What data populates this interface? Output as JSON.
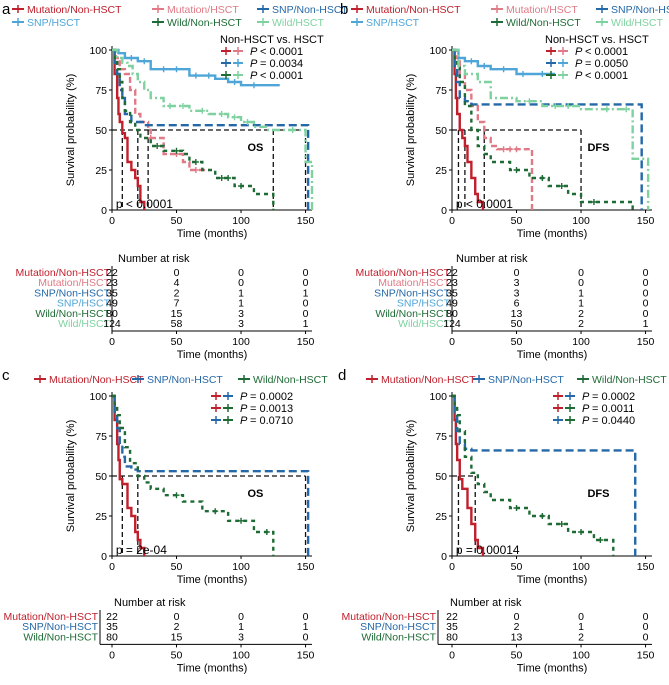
{
  "colors": {
    "mutation_non_hsct": "#c0202c",
    "mutation_hsct": "#e07a86",
    "snp_non_hsct": "#2468a8",
    "snp_hsct": "#4ea6d8",
    "wild_non_hsct": "#1e6b35",
    "wild_hsct": "#7fd2a0",
    "reference": "#111111"
  },
  "shared": {
    "ylabel": "Survival probability (%)",
    "xlabel": "Time (months)",
    "risk_header": "Number at risk",
    "y_ticks": [
      "100",
      "75",
      "50",
      "25",
      "0"
    ],
    "x_ticks": [
      "0",
      "50",
      "100",
      "150"
    ]
  },
  "chart_data": [
    {
      "panel": "a",
      "type": "line",
      "title": "OS",
      "legend": [
        "Mutation/Non-HSCT",
        "Mutation/HSCT",
        "SNP/Non-HSCT",
        "SNP/HSCT",
        "Wild/Non-HSCT",
        "Wild/HSCT"
      ],
      "p_title": "Non-HSCT vs. HSCT",
      "p_values": [
        {
          "keys": [
            "Mutation/Non-HSCT",
            "Mutation/HSCT"
          ],
          "text": "< 0.0001"
        },
        {
          "keys": [
            "SNP/Non-HSCT",
            "SNP/HSCT"
          ],
          "text": "= 0.0034"
        },
        {
          "keys": [
            "Wild/Non-HSCT",
            "Wild/HSCT"
          ],
          "text": "< 0.0001"
        }
      ],
      "logrank": "p < 0.0001",
      "xlim": [
        0,
        155
      ],
      "ylim": [
        0,
        100
      ],
      "median_lines": [
        8,
        20,
        28,
        125,
        150
      ],
      "series": [
        {
          "name": "Mutation/Non-HSCT",
          "x": [
            0,
            2,
            4,
            5,
            6,
            8,
            10,
            12,
            15,
            18,
            20,
            22,
            25
          ],
          "y": [
            100,
            85,
            70,
            60,
            55,
            48,
            45,
            30,
            25,
            20,
            15,
            5,
            0
          ]
        },
        {
          "name": "Mutation/HSCT",
          "x": [
            0,
            3,
            6,
            10,
            14,
            18,
            22,
            28,
            30,
            40,
            55,
            60,
            75
          ],
          "y": [
            100,
            95,
            88,
            85,
            75,
            60,
            55,
            50,
            45,
            35,
            30,
            25,
            25
          ],
          "censor_x": [
            30,
            50,
            65
          ]
        },
        {
          "name": "SNP/Non-HSCT",
          "x": [
            0,
            2,
            4,
            6,
            8,
            10,
            15,
            20,
            25,
            150,
            152
          ],
          "y": [
            100,
            92,
            85,
            75,
            70,
            60,
            55,
            55,
            53,
            53,
            0
          ]
        },
        {
          "name": "SNP/HSCT",
          "x": [
            0,
            5,
            10,
            20,
            30,
            60,
            80,
            90,
            100,
            130
          ],
          "y": [
            100,
            98,
            95,
            93,
            88,
            84,
            82,
            80,
            78,
            78
          ],
          "censor_x": [
            15,
            25,
            40,
            50,
            65,
            75,
            95,
            110
          ]
        },
        {
          "name": "Wild/Non-HSCT",
          "x": [
            0,
            2,
            4,
            6,
            8,
            10,
            14,
            18,
            22,
            30,
            40,
            55,
            60,
            70,
            80,
            95,
            110,
            125
          ],
          "y": [
            100,
            95,
            88,
            80,
            70,
            62,
            55,
            50,
            45,
            40,
            37,
            35,
            30,
            25,
            20,
            15,
            10,
            0
          ],
          "censor_x": [
            35,
            50,
            65,
            85,
            90,
            100
          ]
        },
        {
          "name": "Wild/HSCT",
          "x": [
            0,
            4,
            8,
            12,
            16,
            20,
            25,
            30,
            40,
            60,
            75,
            90,
            100,
            110,
            120,
            150,
            155
          ],
          "y": [
            100,
            95,
            92,
            90,
            85,
            80,
            75,
            70,
            65,
            62,
            60,
            58,
            55,
            52,
            50,
            30,
            0
          ],
          "censor_x": [
            45,
            55,
            70,
            85,
            95,
            105,
            140
          ]
        }
      ],
      "risk_table": [
        {
          "label": "Mutation/Non-HSCT",
          "values": [
            "22",
            "0",
            "0",
            "0"
          ]
        },
        {
          "label": "Mutation/HSCT",
          "values": [
            "23",
            "4",
            "0",
            "0"
          ]
        },
        {
          "label": "SNP/Non-HSCT",
          "values": [
            "35",
            "2",
            "1",
            "1"
          ]
        },
        {
          "label": "SNP/HSCT",
          "values": [
            "49",
            "7",
            "1",
            "0"
          ]
        },
        {
          "label": "Wild/Non-HSCT",
          "values": [
            "80",
            "15",
            "3",
            "0"
          ]
        },
        {
          "label": "Wild/HSCT",
          "values": [
            "124",
            "58",
            "3",
            "1"
          ]
        }
      ]
    },
    {
      "panel": "b",
      "type": "line",
      "title": "DFS",
      "legend": [
        "Mutation/Non-HSCT",
        "Mutation/HSCT",
        "SNP/Non-HSCT",
        "SNP/HSCT",
        "Wild/Non-HSCT",
        "Wild/HSCT"
      ],
      "p_title": "Non-HSCT vs. HSCT",
      "p_values": [
        {
          "keys": [
            "Mutation/Non-HSCT",
            "Mutation/HSCT"
          ],
          "text": "< 0.0001"
        },
        {
          "keys": [
            "SNP/Non-HSCT",
            "SNP/HSCT"
          ],
          "text": "= 0.0050"
        },
        {
          "keys": [
            "Wild/Non-HSCT",
            "Wild/HSCT"
          ],
          "text": "< 0.0001"
        }
      ],
      "logrank": "p < 0.0001",
      "xlim": [
        0,
        155
      ],
      "ylim": [
        0,
        100
      ],
      "median_lines": [
        5,
        10,
        25,
        100
      ],
      "series": [
        {
          "name": "Mutation/Non-HSCT",
          "x": [
            0,
            2,
            3,
            4,
            6,
            8,
            10,
            12,
            15,
            18,
            20,
            24
          ],
          "y": [
            100,
            85,
            70,
            60,
            50,
            45,
            40,
            30,
            20,
            10,
            5,
            0
          ]
        },
        {
          "name": "Mutation/HSCT",
          "x": [
            0,
            3,
            6,
            10,
            15,
            20,
            25,
            30,
            35,
            60,
            62
          ],
          "y": [
            100,
            95,
            85,
            75,
            65,
            55,
            45,
            40,
            38,
            38,
            0
          ],
          "censor_x": [
            40,
            45,
            50
          ]
        },
        {
          "name": "SNP/Non-HSCT",
          "x": [
            0,
            2,
            4,
            6,
            10,
            15,
            20,
            25,
            145,
            147
          ],
          "y": [
            100,
            90,
            80,
            70,
            68,
            66,
            66,
            66,
            66,
            0
          ]
        },
        {
          "name": "SNP/HSCT",
          "x": [
            0,
            5,
            10,
            20,
            30,
            50,
            80
          ],
          "y": [
            100,
            95,
            93,
            90,
            88,
            85,
            85
          ],
          "censor_x": [
            15,
            25,
            40,
            55,
            70
          ]
        },
        {
          "name": "Wild/Non-HSCT",
          "x": [
            0,
            2,
            4,
            6,
            10,
            15,
            20,
            25,
            30,
            45,
            60,
            75,
            90,
            100,
            120,
            140
          ],
          "y": [
            100,
            95,
            90,
            80,
            65,
            50,
            40,
            35,
            30,
            25,
            20,
            15,
            10,
            5,
            5,
            0
          ],
          "censor_x": [
            50,
            70,
            85,
            110
          ]
        },
        {
          "name": "Wild/HSCT",
          "x": [
            0,
            5,
            10,
            20,
            30,
            50,
            70,
            100,
            140,
            150,
            152
          ],
          "y": [
            100,
            90,
            85,
            80,
            70,
            68,
            65,
            63,
            32,
            32,
            0
          ],
          "censor_x": [
            60,
            80,
            90,
            120,
            135
          ]
        }
      ],
      "risk_table": [
        {
          "label": "Mutation/Non-HSCT",
          "values": [
            "22",
            "0",
            "0",
            "0"
          ]
        },
        {
          "label": "Mutation/HSCT",
          "values": [
            "23",
            "3",
            "0",
            "0"
          ]
        },
        {
          "label": "SNP/Non-HSCT",
          "values": [
            "35",
            "3",
            "1",
            "0"
          ]
        },
        {
          "label": "SNP/HSCT",
          "values": [
            "49",
            "6",
            "1",
            "0"
          ]
        },
        {
          "label": "Wild/Non-HSCT",
          "values": [
            "80",
            "13",
            "2",
            "0"
          ]
        },
        {
          "label": "Wild/HSCT",
          "values": [
            "124",
            "50",
            "2",
            "1"
          ]
        }
      ]
    },
    {
      "panel": "c",
      "type": "line",
      "title": "OS",
      "legend": [
        "Mutation/Non-HSCT",
        "SNP/Non-HSCT",
        "Wild/Non-HSCT"
      ],
      "p_title": "",
      "p_values": [
        {
          "keys": [
            "Mutation/Non-HSCT",
            "SNP/Non-HSCT"
          ],
          "text": "= 0.0002"
        },
        {
          "keys": [
            "Mutation/Non-HSCT",
            "Wild/Non-HSCT"
          ],
          "text": "= 0.0013"
        },
        {
          "keys": [
            "SNP/Non-HSCT",
            "Wild/Non-HSCT"
          ],
          "text": "= 0.0710"
        }
      ],
      "logrank": "p = 2e-04",
      "xlim": [
        0,
        155
      ],
      "ylim": [
        0,
        100
      ],
      "median_lines": [
        8,
        20,
        150
      ],
      "series": [
        {
          "name": "Mutation/Non-HSCT",
          "x": [
            0,
            2,
            4,
            5,
            6,
            8,
            12,
            15,
            18,
            20,
            22,
            25
          ],
          "y": [
            100,
            85,
            70,
            60,
            48,
            45,
            30,
            25,
            15,
            10,
            5,
            0
          ]
        },
        {
          "name": "SNP/Non-HSCT",
          "x": [
            0,
            2,
            4,
            6,
            8,
            10,
            15,
            20,
            150,
            152
          ],
          "y": [
            100,
            90,
            80,
            70,
            62,
            56,
            54,
            53,
            53,
            0
          ]
        },
        {
          "name": "Wild/Non-HSCT",
          "x": [
            0,
            2,
            4,
            6,
            10,
            14,
            20,
            25,
            30,
            40,
            55,
            70,
            90,
            110,
            125
          ],
          "y": [
            100,
            95,
            88,
            80,
            68,
            58,
            50,
            46,
            42,
            38,
            34,
            28,
            22,
            15,
            0
          ],
          "censor_x": [
            50,
            80,
            100,
            120
          ]
        }
      ],
      "risk_table": [
        {
          "label": "Mutation/Non-HSCT",
          "values": [
            "22",
            "0",
            "0",
            "0"
          ]
        },
        {
          "label": "SNP/Non-HSCT",
          "values": [
            "35",
            "2",
            "1",
            "1"
          ]
        },
        {
          "label": "Wild/Non-HSCT",
          "values": [
            "80",
            "15",
            "3",
            "0"
          ]
        }
      ]
    },
    {
      "panel": "d",
      "type": "line",
      "title": "DFS",
      "legend": [
        "Mutation/Non-HSCT",
        "SNP/Non-HSCT",
        "Wild/Non-HSCT"
      ],
      "p_title": "",
      "p_values": [
        {
          "keys": [
            "Mutation/Non-HSCT",
            "SNP/Non-HSCT"
          ],
          "text": "= 0.0002"
        },
        {
          "keys": [
            "Mutation/Non-HSCT",
            "Wild/Non-HSCT"
          ],
          "text": "= 0.0011"
        },
        {
          "keys": [
            "SNP/Non-HSCT",
            "Wild/Non-HSCT"
          ],
          "text": "= 0.0440"
        }
      ],
      "logrank": "p = 0.00014",
      "xlim": [
        0,
        155
      ],
      "ylim": [
        0,
        100
      ],
      "median_lines": [
        5,
        18
      ],
      "series": [
        {
          "name": "Mutation/Non-HSCT",
          "x": [
            0,
            2,
            3,
            4,
            6,
            8,
            12,
            15,
            18,
            20,
            24
          ],
          "y": [
            100,
            85,
            70,
            60,
            48,
            42,
            30,
            20,
            10,
            5,
            0
          ]
        },
        {
          "name": "SNP/Non-HSCT",
          "x": [
            0,
            2,
            4,
            6,
            10,
            15,
            20,
            140,
            142
          ],
          "y": [
            100,
            88,
            78,
            70,
            67,
            66,
            66,
            66,
            0
          ]
        },
        {
          "name": "Wild/Non-HSCT",
          "x": [
            0,
            2,
            4,
            6,
            10,
            15,
            20,
            25,
            30,
            45,
            60,
            75,
            90,
            110,
            125
          ],
          "y": [
            100,
            95,
            88,
            78,
            62,
            52,
            45,
            40,
            35,
            30,
            25,
            20,
            15,
            10,
            0
          ],
          "censor_x": [
            50,
            70,
            85,
            100,
            115
          ]
        }
      ],
      "risk_table": [
        {
          "label": "Mutation/Non-HSCT",
          "values": [
            "22",
            "0",
            "0",
            "0"
          ]
        },
        {
          "label": "SNP/Non-HSCT",
          "values": [
            "35",
            "2",
            "1",
            "0"
          ]
        },
        {
          "label": "Wild/Non-HSCT",
          "values": [
            "80",
            "13",
            "2",
            "0"
          ]
        }
      ]
    }
  ]
}
